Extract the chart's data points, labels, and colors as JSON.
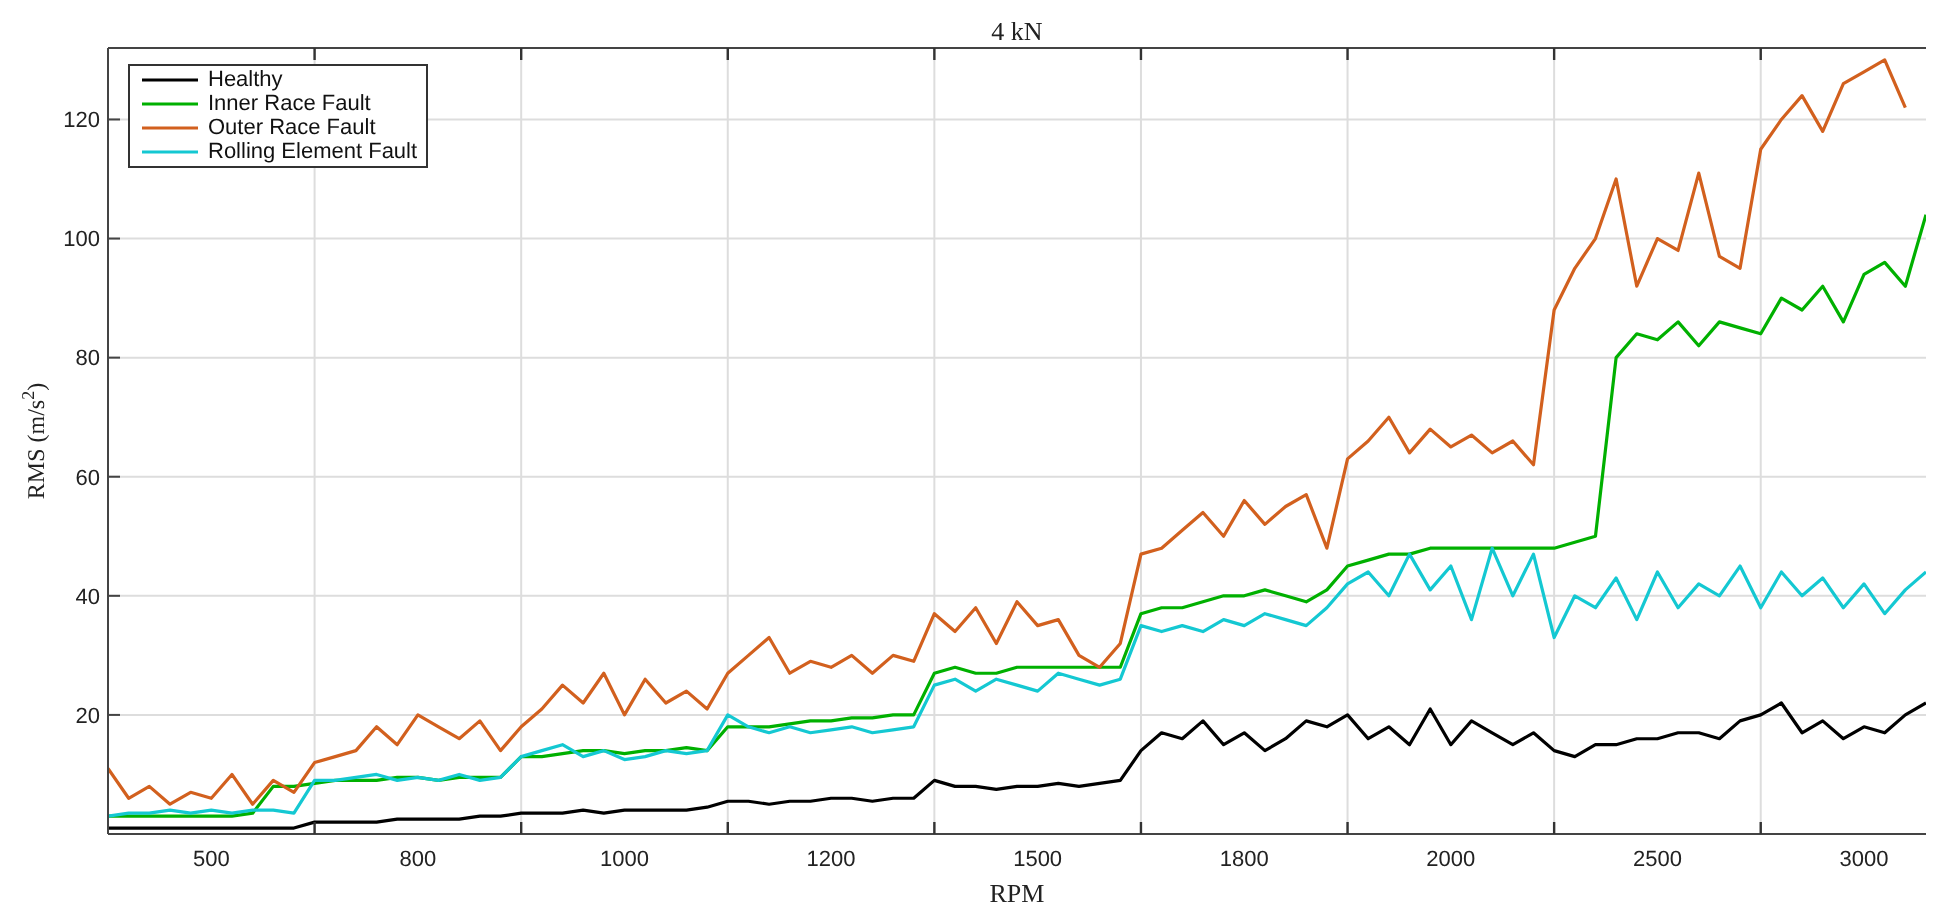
{
  "chart_data": {
    "type": "line",
    "title": "4 kN",
    "xlabel": "RPM",
    "ylabel": "RMS (m/s$^{2}$)",
    "categories": [
      null,
      null,
      null,
      null,
      null,
      "500",
      null,
      null,
      null,
      null,
      null,
      null,
      null,
      null,
      null,
      "800",
      null,
      null,
      null,
      null,
      null,
      null,
      null,
      null,
      null,
      "1000",
      null,
      null,
      null,
      null,
      null,
      null,
      null,
      null,
      null,
      "1200",
      null,
      null,
      null,
      null,
      null,
      null,
      null,
      null,
      null,
      "1500",
      null,
      null,
      null,
      null,
      null,
      null,
      null,
      null,
      null,
      "1800",
      null,
      null,
      null,
      null,
      null,
      null,
      null,
      null,
      null,
      "2000",
      null,
      null,
      null,
      null,
      null,
      null,
      null,
      null,
      null,
      "2500",
      null,
      null,
      null,
      null,
      null,
      null,
      null,
      null,
      null,
      "3000",
      null,
      null,
      null
    ],
    "series": [
      {
        "name": "Healthy",
        "color": "#000000",
        "values": [
          1,
          1,
          1,
          1,
          1,
          1,
          1,
          1,
          1,
          1,
          2,
          2,
          2,
          2,
          2.5,
          2.5,
          2.5,
          2.5,
          3,
          3,
          3.5,
          3.5,
          3.5,
          4,
          3.5,
          4,
          4,
          4,
          4,
          4.5,
          5.5,
          5.5,
          5,
          5.5,
          5.5,
          6,
          6,
          5.5,
          6,
          6,
          9,
          8,
          8,
          7.5,
          8,
          8,
          8.5,
          8,
          8.5,
          9,
          14,
          17,
          16,
          19,
          15,
          17,
          14,
          16,
          19,
          18,
          20,
          16,
          18,
          15,
          21,
          15,
          19,
          17,
          15,
          17,
          14,
          13,
          15,
          15,
          16,
          16,
          17,
          17,
          16,
          19,
          20,
          22,
          17,
          19,
          16,
          18,
          17,
          20,
          22
        ]
      },
      {
        "name": "Inner Race Fault",
        "color": "#00b000",
        "values": [
          3,
          3,
          3,
          3,
          3,
          3,
          3,
          3.5,
          8,
          8,
          8.5,
          9,
          9,
          9,
          9.5,
          9.5,
          9,
          9.5,
          9.5,
          9.5,
          13,
          13,
          13.5,
          14,
          14,
          13.5,
          14,
          14,
          14.5,
          14,
          18,
          18,
          18,
          18.5,
          19,
          19,
          19.5,
          19.5,
          20,
          20,
          27,
          28,
          27,
          27,
          28,
          28,
          28,
          28,
          28,
          28,
          37,
          38,
          38,
          39,
          40,
          40,
          41,
          40,
          39,
          41,
          45,
          46,
          47,
          47,
          48,
          48,
          48,
          48,
          48,
          48,
          48,
          49,
          50,
          80,
          84,
          83,
          86,
          82,
          86,
          85,
          84,
          90,
          88,
          92,
          86,
          94,
          96,
          92,
          104
        ]
      },
      {
        "name": "Outer Race Fault",
        "color": "#d2601e",
        "values": [
          11,
          6,
          8,
          5,
          7,
          6,
          10,
          5,
          9,
          7,
          12,
          13,
          14,
          18,
          15,
          20,
          18,
          16,
          19,
          14,
          18,
          21,
          25,
          22,
          27,
          20,
          26,
          22,
          24,
          21,
          27,
          30,
          33,
          27,
          29,
          28,
          30,
          27,
          30,
          29,
          37,
          34,
          38,
          32,
          39,
          35,
          36,
          30,
          28,
          32,
          47,
          48,
          51,
          54,
          50,
          56,
          52,
          55,
          57,
          48,
          63,
          66,
          70,
          64,
          68,
          65,
          67,
          64,
          66,
          62,
          88,
          95,
          100,
          110,
          92,
          100,
          98,
          111,
          97,
          95,
          115,
          120,
          124,
          118,
          126,
          128,
          130,
          122,
          null
        ]
      },
      {
        "name": "Rolling Element Fault",
        "color": "#14c8d2",
        "values": [
          3,
          3.5,
          3.5,
          4,
          3.5,
          4,
          3.5,
          4,
          4,
          3.5,
          9,
          9,
          9.5,
          10,
          9,
          9.5,
          9,
          10,
          9,
          9.5,
          13,
          14,
          15,
          13,
          14,
          12.5,
          13,
          14,
          13.5,
          14,
          20,
          18,
          17,
          18,
          17,
          17.5,
          18,
          17,
          17.5,
          18,
          25,
          26,
          24,
          26,
          25,
          24,
          27,
          26,
          25,
          26,
          35,
          34,
          35,
          34,
          36,
          35,
          37,
          36,
          35,
          38,
          42,
          44,
          40,
          47,
          41,
          45,
          36,
          48,
          40,
          47,
          33,
          40,
          38,
          43,
          36,
          44,
          38,
          42,
          40,
          45,
          38,
          44,
          40,
          43,
          38,
          42,
          37,
          41,
          44
        ]
      }
    ],
    "ylim": [
      0,
      132
    ],
    "yticks": [
      20,
      40,
      60,
      80,
      100,
      120
    ],
    "grid": true,
    "legend": "top left",
    "marker": "none",
    "line_style": "solid"
  }
}
